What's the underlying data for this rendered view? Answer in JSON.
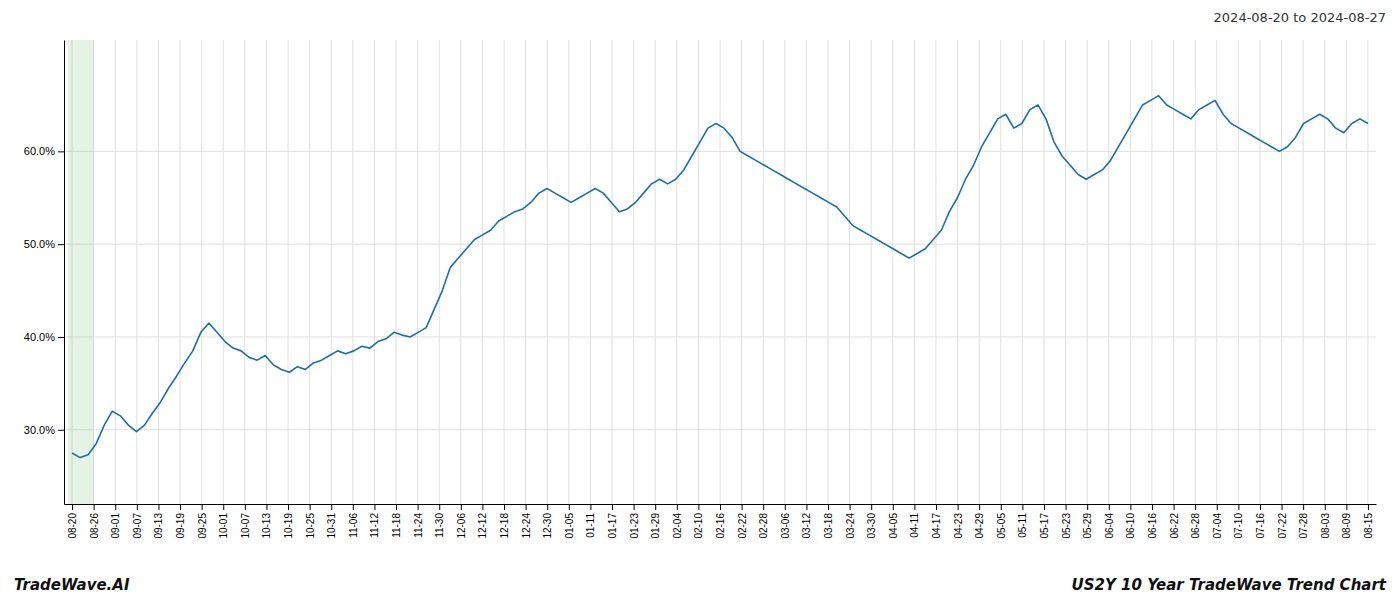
{
  "chart_data": {
    "type": "line",
    "title": "2024-08-20 to 2024-08-27",
    "annotations": [
      "TradeWave.AI",
      "US2Y 10 Year TradeWave Trend Chart"
    ],
    "color": "#1a6faf",
    "grid": true,
    "xlim": [
      -1,
      162
    ],
    "xticks": [
      {
        "value": 0,
        "label": "08-20"
      },
      {
        "value": 2.683333333333333,
        "label": "08-26"
      },
      {
        "value": 5.366666666666666,
        "label": "09-01"
      },
      {
        "value": 8.05,
        "label": "09-07"
      },
      {
        "value": 10.733333333333333,
        "label": "09-13"
      },
      {
        "value": 13.416666666666666,
        "label": "09-19"
      },
      {
        "value": 16.1,
        "label": "09-25"
      },
      {
        "value": 18.78333333333333,
        "label": "10-01"
      },
      {
        "value": 21.466666666666665,
        "label": "10-07"
      },
      {
        "value": 24.15,
        "label": "10-13"
      },
      {
        "value": 26.833333333333332,
        "label": "10-19"
      },
      {
        "value": 29.516666666666666,
        "label": "10-25"
      },
      {
        "value": 32.2,
        "label": "10-31"
      },
      {
        "value": 34.88333333333333,
        "label": "11-06"
      },
      {
        "value": 37.56666666666667,
        "label": "11-12"
      },
      {
        "value": 40.25,
        "label": "11-18"
      },
      {
        "value": 42.93333333333333,
        "label": "11-24"
      },
      {
        "value": 45.61666666666667,
        "label": "11-30"
      },
      {
        "value": 48.3,
        "label": "12-06"
      },
      {
        "value": 50.983333333333334,
        "label": "12-12"
      },
      {
        "value": 53.666666666666664,
        "label": "12-18"
      },
      {
        "value": 56.35,
        "label": "12-24"
      },
      {
        "value": 59.03333333333333,
        "label": "12-30"
      },
      {
        "value": 61.71666666666667,
        "label": "01-05"
      },
      {
        "value": 64.4,
        "label": "01-11"
      },
      {
        "value": 67.08333333333333,
        "label": "01-17"
      },
      {
        "value": 69.76666666666667,
        "label": "01-23"
      },
      {
        "value": 72.45,
        "label": "01-29"
      },
      {
        "value": 75.13333333333334,
        "label": "02-04"
      },
      {
        "value": 77.81666666666666,
        "label": "02-10"
      },
      {
        "value": 80.5,
        "label": "02-16"
      },
      {
        "value": 83.18333333333334,
        "label": "02-22"
      },
      {
        "value": 85.86666666666666,
        "label": "02-28"
      },
      {
        "value": 88.55,
        "label": "03-06"
      },
      {
        "value": 91.23333333333333,
        "label": "03-12"
      },
      {
        "value": 93.91666666666667,
        "label": "03-18"
      },
      {
        "value": 96.6,
        "label": "03-24"
      },
      {
        "value": 99.28333333333333,
        "label": "03-30"
      },
      {
        "value": 101.96666666666667,
        "label": "04-05"
      },
      {
        "value": 104.65,
        "label": "04-11"
      },
      {
        "value": 107.33333333333333,
        "label": "04-17"
      },
      {
        "value": 110.01666666666667,
        "label": "04-23"
      },
      {
        "value": 112.7,
        "label": "04-29"
      },
      {
        "value": 115.38333333333334,
        "label": "05-05"
      },
      {
        "value": 118.06666666666666,
        "label": "05-11"
      },
      {
        "value": 120.75,
        "label": "05-17"
      },
      {
        "value": 123.43333333333334,
        "label": "05-23"
      },
      {
        "value": 126.11666666666666,
        "label": "05-29"
      },
      {
        "value": 128.8,
        "label": "06-04"
      },
      {
        "value": 131.48333333333332,
        "label": "06-10"
      },
      {
        "value": 134.16666666666666,
        "label": "06-16"
      },
      {
        "value": 136.85,
        "label": "06-22"
      },
      {
        "value": 139.53333333333333,
        "label": "06-28"
      },
      {
        "value": 142.21666666666667,
        "label": "07-04"
      },
      {
        "value": 144.9,
        "label": "07-10"
      },
      {
        "value": 147.58333333333334,
        "label": "07-16"
      },
      {
        "value": 150.26666666666668,
        "label": "07-22"
      },
      {
        "value": 152.95,
        "label": "07-28"
      },
      {
        "value": 155.63333333333333,
        "label": "08-03"
      },
      {
        "value": 158.31666666666666,
        "label": "08-09"
      },
      {
        "value": 161,
        "label": "08-15"
      }
    ],
    "ylim": [
      22,
      72
    ],
    "yticks": [
      {
        "value": 30.0,
        "label": "30.0%"
      },
      {
        "value": 40.0,
        "label": "40.0%"
      },
      {
        "value": 50.0,
        "label": "50.0%"
      },
      {
        "value": 60.0,
        "label": "60.0%"
      }
    ],
    "values": [
      27.5,
      27.0,
      27.3,
      28.5,
      30.5,
      32.0,
      31.5,
      30.5,
      29.8,
      30.5,
      31.8,
      33.0,
      34.5,
      35.8,
      37.2,
      38.5,
      40.5,
      41.5,
      40.5,
      39.5,
      38.8,
      38.5,
      37.8,
      37.5,
      38.0,
      37.0,
      36.5,
      36.2,
      36.8,
      36.5,
      37.2,
      37.5,
      38.0,
      38.5,
      38.2,
      38.5,
      39.0,
      38.8,
      39.5,
      39.8,
      40.5,
      40.2,
      40.0,
      40.5,
      41.0,
      43.0,
      45.0,
      47.5,
      48.5,
      49.5,
      50.5,
      51.0,
      51.5,
      52.5,
      53.0,
      53.5,
      53.8,
      54.5,
      55.5,
      56.0,
      55.5,
      55.0,
      54.5,
      55.0,
      55.5,
      56.0,
      55.5,
      54.5,
      53.5,
      53.8,
      54.5,
      55.5,
      56.5,
      57.0,
      56.5,
      57.0,
      58.0,
      59.5,
      61.0,
      62.5,
      63.0,
      62.5,
      61.5,
      60.0,
      59.5,
      59.0,
      58.5,
      58.0,
      57.5,
      57.0,
      56.5,
      56.0,
      55.5,
      55.0,
      54.5,
      54.0,
      53.0,
      52.0,
      51.5,
      51.0,
      50.5,
      50.0,
      49.5,
      49.0,
      48.5,
      49.0,
      49.5,
      50.5,
      51.5,
      53.5,
      55.0,
      57.0,
      58.5,
      60.5,
      62.0,
      63.5,
      64.0,
      62.5,
      63.0,
      64.5,
      65.0,
      63.5,
      61.0,
      59.5,
      58.5,
      57.5,
      57.0,
      57.5,
      58.0,
      59.0,
      60.5,
      62.0,
      63.5,
      65.0,
      65.5,
      66.0,
      65.0,
      64.5,
      64.0,
      63.5,
      64.5,
      65.0,
      65.5,
      64.0,
      63.0,
      62.5,
      62.0,
      61.5,
      61.0,
      60.5,
      60.0,
      60.5,
      61.5,
      63.0,
      63.5,
      64.0,
      63.5,
      62.5,
      62.0,
      63.0,
      63.5,
      63.0
    ]
  }
}
